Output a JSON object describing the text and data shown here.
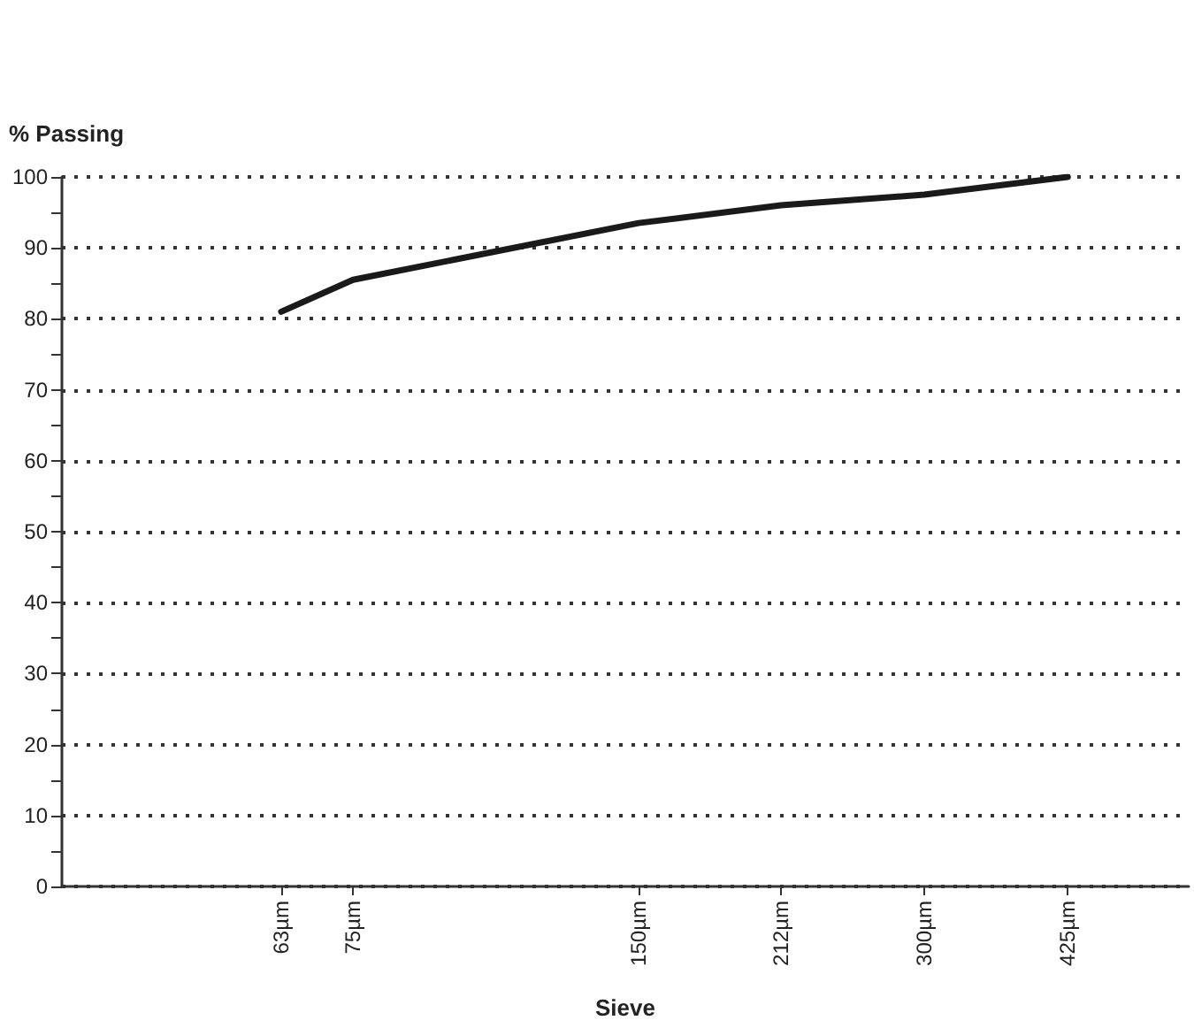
{
  "chart_data": {
    "type": "line",
    "ylabel": "% Passing",
    "xlabel": "Sieve",
    "log": "x",
    "x": [
      63,
      75,
      150,
      212,
      300,
      425
    ],
    "series": [
      {
        "color": "#1a1a1a",
        "values": [
          81,
          85.5,
          93.5,
          96,
          97.5,
          100
        ]
      }
    ],
    "xlim": [
      37,
      570
    ],
    "xticks": [
      {
        "value": 63,
        "label": "63µm"
      },
      {
        "value": 75,
        "label": "75µm"
      },
      {
        "value": 150,
        "label": "150µm"
      },
      {
        "value": 212,
        "label": "212µm"
      },
      {
        "value": 300,
        "label": "300µm"
      },
      {
        "value": 425,
        "label": "425µm"
      }
    ],
    "ylim": [
      0,
      100
    ],
    "yticks": [
      0,
      {
        "value": 5,
        "label": null
      },
      10,
      {
        "value": 15,
        "label": null
      },
      20,
      {
        "value": 25,
        "label": null
      },
      30,
      {
        "value": 35,
        "label": null
      },
      40,
      {
        "value": 45,
        "label": null
      },
      50,
      {
        "value": 55,
        "label": null
      },
      60,
      {
        "value": 65,
        "label": null
      },
      70,
      {
        "value": 75,
        "label": null
      },
      80,
      {
        "value": 85,
        "label": null
      },
      90,
      {
        "value": 95,
        "label": null
      },
      100
    ],
    "grid": "y",
    "marker": "none",
    "line_style": "solid"
  }
}
